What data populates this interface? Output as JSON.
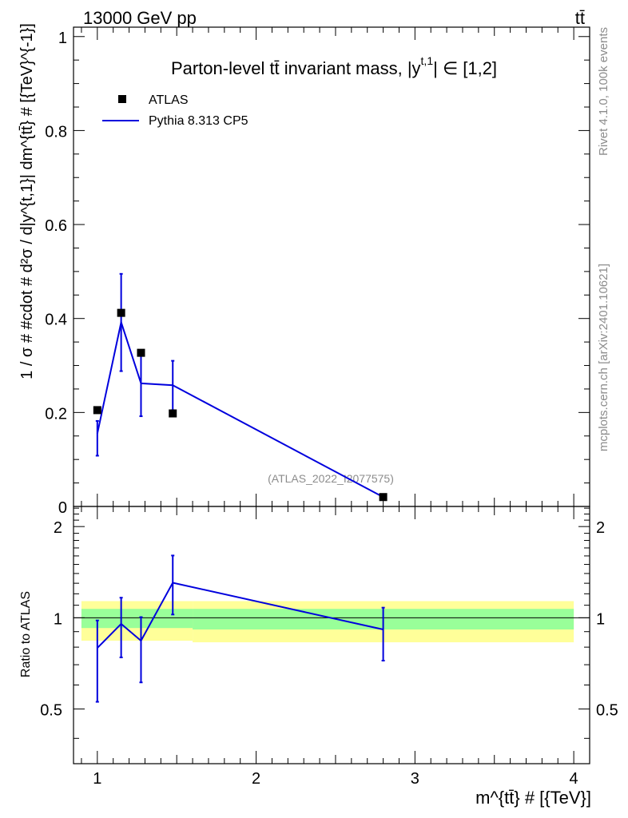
{
  "header": {
    "collision": "13000 GeV pp",
    "process": "tt̄"
  },
  "side_labels": {
    "rivet": "Rivet 4.1.0,  100k events",
    "mcplots": "mcplots.cern.ch [arXiv:2401.10621]"
  },
  "colors": {
    "mc": "#0000dd",
    "data": "#000000",
    "band_inner": "#99ff99",
    "band_outer": "#ffff99",
    "watermark": "#8c8c8c"
  },
  "chart_data": [
    {
      "type": "scatter",
      "title": "Parton-level tt̄ invariant mass, |y",
      "title_sup": "t,1",
      "title_rest": "| ∈ [1,2]",
      "ylabel": "1 / σ # #cdot # d²σ / d|y^{t,1}| dm^{tt̄} # [{TeV}^{-1}]",
      "watermark": "(ATLAS_2022_I2077575)",
      "xlim": [
        0.85,
        4.1
      ],
      "ylim": [
        0,
        1.02
      ],
      "y_ticks": [
        0,
        0.2,
        0.4,
        0.6,
        0.8,
        1
      ],
      "y_tick_labels": [
        "0",
        "0.2",
        "0.4",
        "0.6",
        "0.8",
        "1"
      ],
      "legend": {
        "placement": "top-left",
        "entries": [
          "ATLAS",
          "Pythia 8.313 CP5"
        ]
      },
      "series": [
        {
          "name": "ATLAS",
          "style": "markers",
          "x": [
            1.0,
            1.15,
            1.275,
            1.475,
            2.8
          ],
          "y": [
            0.205,
            0.412,
            0.327,
            0.198,
            0.02
          ]
        },
        {
          "name": "Pythia 8.313 CP5",
          "style": "line",
          "x": [
            1.0,
            1.15,
            1.275,
            1.475,
            2.8
          ],
          "y": [
            0.155,
            0.392,
            0.262,
            0.258,
            0.02
          ],
          "err_low": [
            0.108,
            0.288,
            0.192,
            0.205,
            0.018
          ],
          "err_high": [
            0.182,
            0.495,
            0.327,
            0.31,
            0.022
          ]
        }
      ]
    },
    {
      "type": "line",
      "ylabel": "Ratio to ATLAS",
      "xlabel": "m^{tt̄} # [{TeV}]",
      "xlim": [
        0.85,
        4.1
      ],
      "ylim": [
        0.33,
        2.33
      ],
      "x_ticks": [
        1,
        2,
        3,
        4
      ],
      "x_tick_labels": [
        "1",
        "2",
        "3",
        "4"
      ],
      "y_ticks": [
        0.5,
        1,
        2
      ],
      "y_tick_labels": [
        "0.5",
        "1",
        "2"
      ],
      "bands": {
        "x_edges": [
          0.9,
          1.6,
          4.0
        ],
        "outer_low": [
          0.84,
          0.83
        ],
        "outer_high": [
          1.135,
          1.135
        ],
        "inner_low": [
          0.925,
          0.915
        ],
        "inner_high": [
          1.07,
          1.07
        ]
      },
      "series": [
        {
          "name": "Pythia 8.313 CP5",
          "x": [
            1.0,
            1.15,
            1.275,
            1.475,
            2.8
          ],
          "y": [
            0.795,
            0.955,
            0.84,
            1.305,
            0.915
          ],
          "err_low": [
            0.528,
            0.74,
            0.612,
            1.025,
            0.722
          ],
          "err_high": [
            0.98,
            1.165,
            1.005,
            1.605,
            1.08
          ]
        }
      ]
    }
  ]
}
